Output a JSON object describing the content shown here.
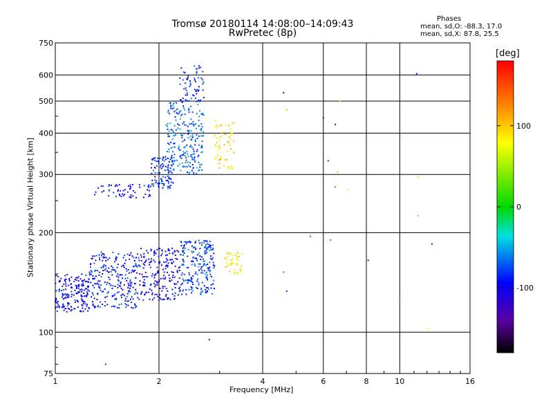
{
  "chart_data": {
    "type": "scatter",
    "title": "Tromsø 20180114 14:08:00–14:09:43",
    "subtitle": "RwPretec (8p)",
    "xlabel": "Frequency [MHz]",
    "ylabel": "Stationary phase Virtual Height [km]",
    "x_scale": "log",
    "y_scale": "log",
    "xlim": [
      1,
      16
    ],
    "ylim": [
      75,
      750
    ],
    "x_ticks": [
      1,
      2,
      4,
      6,
      8,
      10,
      16
    ],
    "y_ticks": [
      75,
      100,
      200,
      300,
      400,
      500,
      600,
      750
    ],
    "grid": true,
    "colorbar": {
      "label": "[deg]",
      "range": [
        -180,
        180
      ],
      "ticks": [
        100,
        0,
        -100
      ]
    },
    "legend": {
      "heading": "Phases",
      "lines": [
        "mean, sd,O: -88.3, 17.0",
        "mean, sd,X:  87.8, 25.5"
      ]
    },
    "clusters": [
      {
        "phase": -95,
        "x_range": [
          1.0,
          1.25
        ],
        "y_range": [
          115,
          150
        ],
        "count": 180
      },
      {
        "phase": -90,
        "x_range": [
          1.25,
          1.75
        ],
        "y_range": [
          118,
          175
        ],
        "count": 260
      },
      {
        "phase": -100,
        "x_range": [
          1.75,
          2.3
        ],
        "y_range": [
          125,
          180
        ],
        "count": 200
      },
      {
        "phase": -80,
        "x_range": [
          2.3,
          2.9
        ],
        "y_range": [
          130,
          190
        ],
        "count": 220
      },
      {
        "phase": 85,
        "x_range": [
          3.1,
          3.5
        ],
        "y_range": [
          150,
          175
        ],
        "count": 40
      },
      {
        "phase": -95,
        "x_range": [
          1.3,
          1.9
        ],
        "y_range": [
          255,
          280
        ],
        "count": 60
      },
      {
        "phase": -85,
        "x_range": [
          1.9,
          2.2
        ],
        "y_range": [
          270,
          340
        ],
        "count": 90
      },
      {
        "phase": -70,
        "x_range": [
          2.1,
          2.7
        ],
        "y_range": [
          300,
          500
        ],
        "count": 240
      },
      {
        "phase": -90,
        "x_range": [
          2.3,
          2.7
        ],
        "y_range": [
          500,
          640
        ],
        "count": 60
      },
      {
        "phase": 90,
        "x_range": [
          2.9,
          3.3
        ],
        "y_range": [
          310,
          440
        ],
        "count": 60
      }
    ],
    "points": [
      {
        "x": 1.4,
        "y": 80,
        "phase": -140
      },
      {
        "x": 2.8,
        "y": 95,
        "phase": -130
      },
      {
        "x": 4.6,
        "y": 530,
        "phase": -100
      },
      {
        "x": 4.7,
        "y": 470,
        "phase": 110
      },
      {
        "x": 6.0,
        "y": 445,
        "phase": -90
      },
      {
        "x": 6.5,
        "y": 425,
        "phase": -110
      },
      {
        "x": 6.2,
        "y": 330,
        "phase": -80
      },
      {
        "x": 6.6,
        "y": 305,
        "phase": 40
      },
      {
        "x": 6.5,
        "y": 275,
        "phase": 140
      },
      {
        "x": 7.1,
        "y": 270,
        "phase": 70
      },
      {
        "x": 6.7,
        "y": 500,
        "phase": 100
      },
      {
        "x": 5.5,
        "y": 195,
        "phase": 160
      },
      {
        "x": 6.3,
        "y": 190,
        "phase": 150
      },
      {
        "x": 8.1,
        "y": 165,
        "phase": -120
      },
      {
        "x": 4.6,
        "y": 152,
        "phase": 150
      },
      {
        "x": 4.7,
        "y": 133,
        "phase": -80
      },
      {
        "x": 10.0,
        "y": 128,
        "phase": 140
      },
      {
        "x": 11.2,
        "y": 605,
        "phase": -100
      },
      {
        "x": 11.3,
        "y": 295,
        "phase": 90
      },
      {
        "x": 11.3,
        "y": 225,
        "phase": 110
      },
      {
        "x": 12.4,
        "y": 185,
        "phase": -90
      },
      {
        "x": 12.0,
        "y": 102,
        "phase": 80
      }
    ]
  }
}
